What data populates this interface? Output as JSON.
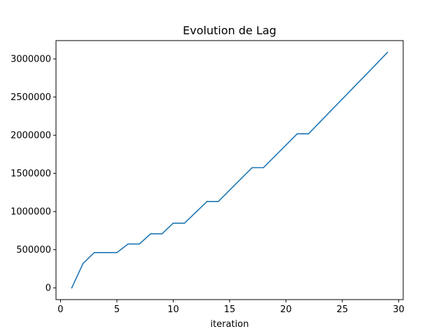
{
  "chart_data": {
    "type": "line",
    "title": "Evolution de Lag",
    "xlabel": "iteration",
    "ylabel": "",
    "xlim": [
      -0.4,
      30.4
    ],
    "ylim": [
      -154000,
      3240000
    ],
    "xticks": [
      0,
      5,
      10,
      15,
      20,
      25,
      30
    ],
    "yticks": [
      0,
      500000,
      1000000,
      1500000,
      2000000,
      2500000,
      3000000
    ],
    "grid": false,
    "series": [
      {
        "color": "#1f77b4",
        "x": [
          1,
          2,
          3,
          4,
          5,
          6,
          7,
          8,
          9,
          10,
          11,
          12,
          13,
          14,
          15,
          16,
          17,
          18,
          19,
          20,
          21,
          22,
          23,
          24,
          25,
          26,
          27,
          28,
          29
        ],
        "y": [
          0,
          320000,
          462000,
          462000,
          462000,
          575000,
          575000,
          708000,
          708000,
          848000,
          848000,
          990000,
          1132000,
          1132000,
          1280000,
          1428000,
          1575000,
          1575000,
          1722000,
          1870000,
          2018000,
          2018000,
          2171000,
          2323000,
          2475000,
          2627000,
          2779000,
          2931000,
          3085000
        ]
      }
    ]
  }
}
